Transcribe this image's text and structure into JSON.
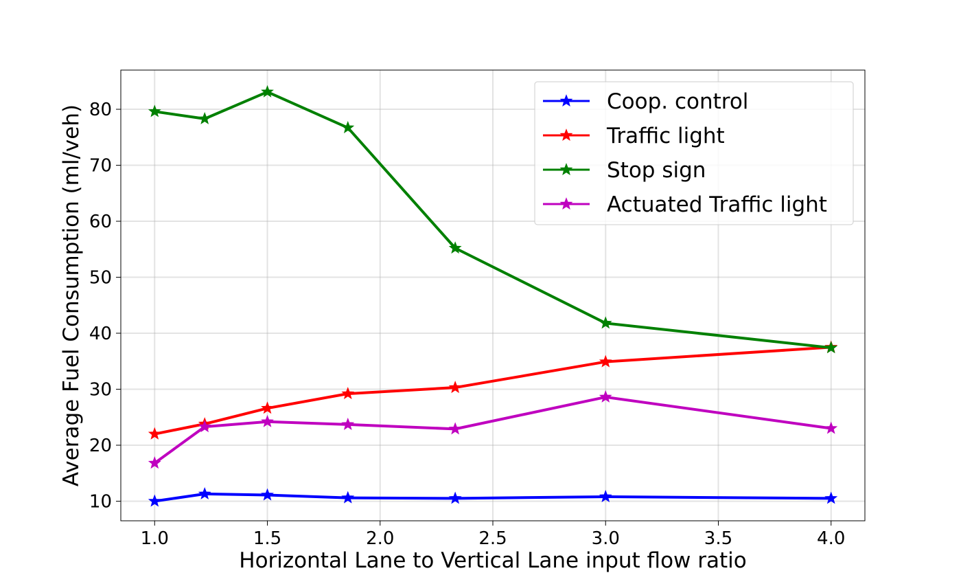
{
  "chart_data": {
    "type": "line",
    "title": "",
    "xlabel": "Horizontal Lane to Vertical Lane input flow ratio",
    "ylabel": "Average Fuel Consumption (ml/veh)",
    "x": [
      1.0,
      1.222,
      1.5,
      1.857,
      2.333,
      3.0,
      4.0
    ],
    "xlim": [
      0.85,
      4.15
    ],
    "ylim": [
      6.5,
      87
    ],
    "xticks": [
      1.0,
      1.5,
      2.0,
      2.5,
      3.0,
      3.5,
      4.0
    ],
    "xtick_labels": [
      "1.0",
      "1.5",
      "2.0",
      "2.5",
      "3.0",
      "3.5",
      "4.0"
    ],
    "yticks": [
      10,
      20,
      30,
      40,
      50,
      60,
      70,
      80
    ],
    "ytick_labels": [
      "10",
      "20",
      "30",
      "40",
      "50",
      "60",
      "70",
      "80"
    ],
    "grid": true,
    "legend_position": "upper right",
    "marker": "star",
    "series": [
      {
        "name": "Coop. control",
        "color": "#0000ff",
        "values": [
          10.0,
          11.3,
          11.1,
          10.6,
          10.5,
          10.8,
          10.5
        ]
      },
      {
        "name": "Traffic light",
        "color": "#ff0000",
        "values": [
          22.0,
          23.8,
          26.6,
          29.2,
          30.3,
          34.9,
          37.5
        ]
      },
      {
        "name": "Stop sign",
        "color": "#008000",
        "values": [
          79.6,
          78.3,
          83.1,
          76.7,
          55.2,
          41.8,
          37.4
        ]
      },
      {
        "name": "Actuated Traffic light",
        "color": "#bf00bf",
        "values": [
          16.8,
          23.3,
          24.2,
          23.7,
          22.9,
          28.6,
          23.0
        ]
      }
    ]
  }
}
